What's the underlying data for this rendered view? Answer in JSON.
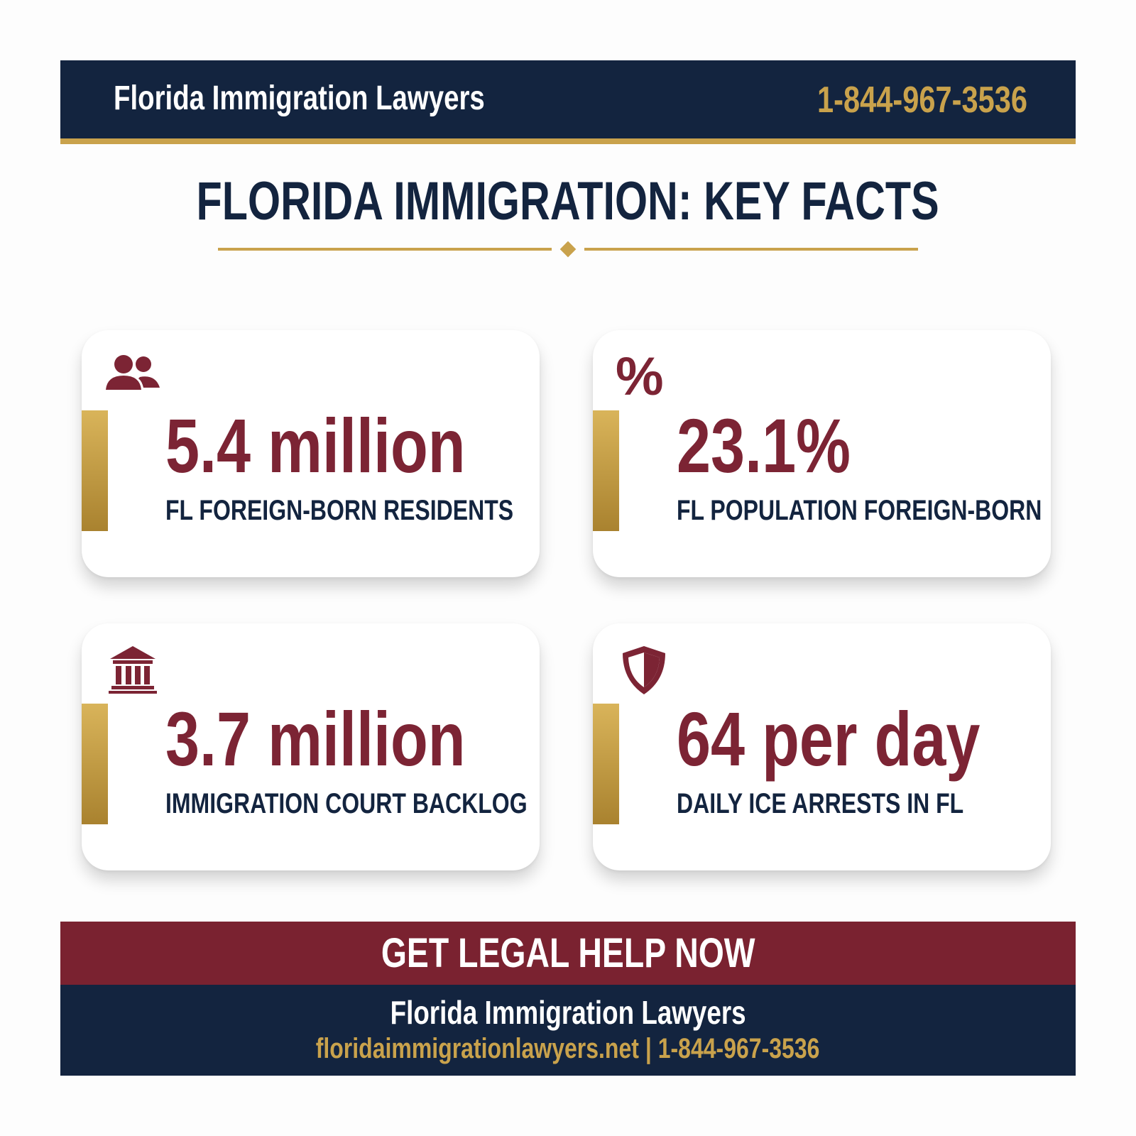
{
  "header": {
    "brand": "Florida Immigration Lawyers",
    "phone": "1-844-967-3536"
  },
  "title": "FLORIDA IMMIGRATION: KEY FACTS",
  "facts": [
    {
      "icon": "people-icon",
      "value": "5.4 million",
      "label": "FL FOREIGN-BORN RESIDENTS"
    },
    {
      "icon": "percent-icon",
      "value": "23.1%",
      "label": "FL POPULATION FOREIGN-BORN",
      "icon_text": "%"
    },
    {
      "icon": "courthouse-icon",
      "value": "3.7 million",
      "label": "IMMIGRATION COURT BACKLOG"
    },
    {
      "icon": "shield-icon",
      "value": "64 per day",
      "label": "DAILY ICE ARRESTS IN FL"
    }
  ],
  "cta": {
    "label": "GET LEGAL HELP NOW"
  },
  "footer": {
    "name": "Florida Immigration Lawyers",
    "website": "floridaimmigrationlawyers.net",
    "separator": "|",
    "phone": "1-844-967-3536"
  },
  "colors": {
    "navy": "#13243f",
    "gold": "#c9a24c",
    "maroon": "#7c2434"
  }
}
